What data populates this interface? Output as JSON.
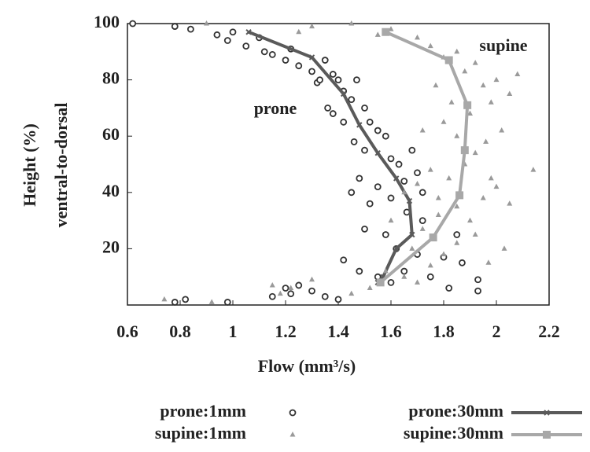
{
  "chart_data": {
    "type": "scatter",
    "x_label": "Flow (mm³/s)",
    "y_label": [
      "Height (%)",
      "ventral-to-dorsal"
    ],
    "annotations": [
      "prone",
      "supine"
    ],
    "xlim": [
      0.6,
      2.2
    ],
    "xticks": [
      0.6,
      0.8,
      1,
      1.2,
      1.4,
      1.6,
      1.8,
      2,
      2.2
    ],
    "ylim": [
      0,
      100
    ],
    "yticks": [
      20,
      40,
      60,
      80,
      100
    ],
    "series": [
      {
        "name": "prone:1mm",
        "type": "scatter",
        "marker": "circle",
        "color": "#333333",
        "x": [
          0.62,
          0.78,
          0.84,
          0.94,
          1.0,
          0.98,
          1.05,
          1.1,
          1.12,
          1.15,
          1.2,
          1.22,
          1.25,
          1.3,
          1.32,
          1.35,
          1.38,
          1.4,
          1.42,
          1.45,
          1.47,
          1.36,
          1.38,
          1.5,
          1.52,
          1.55,
          1.58,
          1.46,
          1.5,
          1.6,
          1.63,
          1.48,
          1.55,
          1.65,
          1.7,
          1.72,
          1.6,
          1.52,
          1.45,
          1.66,
          1.72,
          1.5,
          1.58,
          1.62,
          1.7,
          1.8,
          1.42,
          1.48,
          1.55,
          1.6,
          1.65,
          1.75,
          1.82,
          1.2,
          1.25,
          1.22,
          1.3,
          1.35,
          1.4,
          1.15,
          0.78,
          0.82,
          0.98,
          1.93,
          1.93,
          1.85,
          1.87,
          1.68,
          1.42,
          1.33
        ],
        "values": [
          100,
          99,
          98,
          96,
          97,
          94,
          92,
          95,
          90,
          89,
          87,
          91,
          85,
          83,
          79,
          87,
          82,
          80,
          76,
          73,
          80,
          70,
          68,
          70,
          65,
          62,
          60,
          58,
          55,
          52,
          50,
          45,
          42,
          44,
          47,
          40,
          38,
          36,
          40,
          33,
          30,
          27,
          25,
          20,
          18,
          17,
          16,
          12,
          10,
          8,
          12,
          10,
          6,
          6,
          7,
          4,
          5,
          3,
          2,
          3,
          1,
          2,
          1,
          9,
          5,
          25,
          15,
          55,
          65,
          80
        ]
      },
      {
        "name": "prone:30mm",
        "type": "line",
        "marker": "x",
        "color": "#5a5a5a",
        "x": [
          1.06,
          1.3,
          1.42,
          1.48,
          1.55,
          1.62,
          1.67,
          1.68,
          1.62,
          1.57,
          1.55
        ],
        "values": [
          97,
          88,
          75,
          64,
          54,
          45,
          37,
          25,
          20,
          10,
          8
        ]
      },
      {
        "name": "supine:1mm",
        "type": "scatter",
        "marker": "triangle",
        "color": "#9a9a9a",
        "x": [
          0.74,
          0.92,
          1.15,
          1.18,
          1.22,
          1.3,
          1.45,
          1.52,
          1.58,
          1.65,
          1.7,
          1.75,
          1.8,
          1.85,
          1.92,
          1.72,
          1.78,
          1.85,
          1.9,
          1.95,
          2.0,
          2.05,
          2.14,
          1.82,
          1.75,
          1.7,
          1.88,
          1.92,
          1.96,
          2.02,
          1.85,
          1.8,
          1.9,
          1.98,
          2.05,
          2.0,
          1.95,
          1.88,
          1.92,
          1.85,
          1.8,
          1.75,
          1.7,
          1.6,
          1.55,
          1.45,
          1.3,
          1.25,
          0.9,
          1.65,
          1.6,
          1.68,
          1.78,
          1.97,
          2.03,
          1.72,
          1.83,
          1.77,
          2.08,
          1.98
        ],
        "values": [
          2,
          1,
          7,
          4,
          6,
          9,
          4,
          6,
          12,
          10,
          8,
          14,
          18,
          22,
          25,
          27,
          32,
          35,
          30,
          38,
          42,
          36,
          48,
          45,
          48,
          43,
          50,
          54,
          58,
          62,
          60,
          65,
          68,
          72,
          75,
          80,
          78,
          83,
          86,
          90,
          88,
          92,
          95,
          98,
          96,
          100,
          99,
          97,
          100,
          40,
          30,
          20,
          38,
          15,
          20,
          62,
          72,
          78,
          82,
          45
        ]
      },
      {
        "name": "supine:30mm",
        "type": "line",
        "marker": "square",
        "color": "#a8a8a8",
        "x": [
          1.58,
          1.82,
          1.89,
          1.88,
          1.86,
          1.76,
          1.56
        ],
        "values": [
          97,
          87,
          71,
          55,
          39,
          24,
          8
        ]
      }
    ]
  }
}
